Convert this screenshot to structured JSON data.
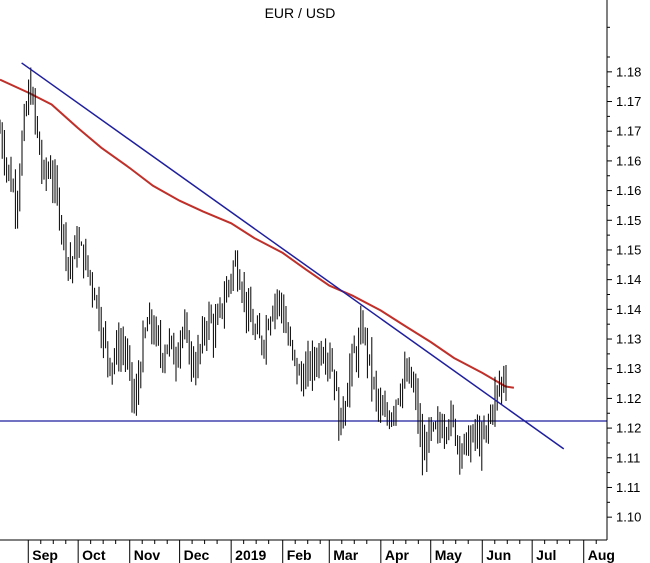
{
  "chart_data": {
    "type": "ohlc",
    "title": "EUR / USD",
    "x_tick_labels": [
      "Sep",
      "Oct",
      "Nov",
      "Dec",
      "2019",
      "Feb",
      "Mar",
      "Apr",
      "May",
      "Jun",
      "Jul",
      "Aug"
    ],
    "y_tick_labels": [
      "1.18",
      "1.17",
      "1.17",
      "1.16",
      "1.16",
      "1.15",
      "1.15",
      "1.14",
      "1.14",
      "1.13",
      "1.13",
      "1.12",
      "1.12",
      "1.11",
      "1.11",
      "1.10"
    ],
    "ylim": [
      1.1025,
      1.1825
    ],
    "grid": false,
    "trendline": {
      "start": {
        "date": "2018-08-28",
        "value": 1.1815
      },
      "end": {
        "date": "2019-07-20",
        "value": 1.1165
      },
      "color": "#1f1f9f"
    },
    "support_line": {
      "value": 1.1212,
      "color": "#1f1f9f"
    },
    "moving_average": {
      "color": "#c0302a",
      "points": [
        {
          "date": "2018-08-15",
          "value": 1.1787
        },
        {
          "date": "2018-09-01",
          "value": 1.1765
        },
        {
          "date": "2018-09-15",
          "value": 1.1745
        },
        {
          "date": "2018-10-01",
          "value": 1.1705
        },
        {
          "date": "2018-10-15",
          "value": 1.1672
        },
        {
          "date": "2018-11-01",
          "value": 1.1638
        },
        {
          "date": "2018-11-15",
          "value": 1.1608
        },
        {
          "date": "2018-12-01",
          "value": 1.1583
        },
        {
          "date": "2018-12-15",
          "value": 1.1565
        },
        {
          "date": "2019-01-01",
          "value": 1.1545
        },
        {
          "date": "2019-01-15",
          "value": 1.152
        },
        {
          "date": "2019-02-01",
          "value": 1.1495
        },
        {
          "date": "2019-02-15",
          "value": 1.1467
        },
        {
          "date": "2019-03-01",
          "value": 1.144
        },
        {
          "date": "2019-03-15",
          "value": 1.1423
        },
        {
          "date": "2019-04-01",
          "value": 1.1398
        },
        {
          "date": "2019-04-15",
          "value": 1.1373
        },
        {
          "date": "2019-05-01",
          "value": 1.1345
        },
        {
          "date": "2019-05-15",
          "value": 1.1318
        },
        {
          "date": "2019-06-01",
          "value": 1.1293
        },
        {
          "date": "2019-06-15",
          "value": 1.127
        },
        {
          "date": "2019-06-20",
          "value": 1.1268
        }
      ]
    },
    "price_path": [
      {
        "date": "2018-08-15",
        "value": 1.17
      },
      {
        "date": "2018-08-20",
        "value": 1.163
      },
      {
        "date": "2018-08-25",
        "value": 1.158
      },
      {
        "date": "2018-08-28",
        "value": 1.168
      },
      {
        "date": "2018-09-02",
        "value": 1.178
      },
      {
        "date": "2018-09-06",
        "value": 1.17
      },
      {
        "date": "2018-09-10",
        "value": 1.162
      },
      {
        "date": "2018-09-14",
        "value": 1.164
      },
      {
        "date": "2018-09-18",
        "value": 1.159
      },
      {
        "date": "2018-09-22",
        "value": 1.153
      },
      {
        "date": "2018-09-26",
        "value": 1.147
      },
      {
        "date": "2018-09-30",
        "value": 1.151
      },
      {
        "date": "2018-10-04",
        "value": 1.149
      },
      {
        "date": "2018-10-08",
        "value": 1.1455
      },
      {
        "date": "2018-10-12",
        "value": 1.142
      },
      {
        "date": "2018-10-16",
        "value": 1.135
      },
      {
        "date": "2018-10-20",
        "value": 1.131
      },
      {
        "date": "2018-10-24",
        "value": 1.133
      },
      {
        "date": "2018-10-28",
        "value": 1.134
      },
      {
        "date": "2018-11-01",
        "value": 1.129
      },
      {
        "date": "2018-11-04",
        "value": 1.123
      },
      {
        "date": "2018-11-08",
        "value": 1.1325
      },
      {
        "date": "2018-11-12",
        "value": 1.138
      },
      {
        "date": "2018-11-16",
        "value": 1.136
      },
      {
        "date": "2018-11-20",
        "value": 1.132
      },
      {
        "date": "2018-11-24",
        "value": 1.135
      },
      {
        "date": "2018-11-28",
        "value": 1.1315
      },
      {
        "date": "2018-12-02",
        "value": 1.137
      },
      {
        "date": "2018-12-06",
        "value": 1.1335
      },
      {
        "date": "2018-12-10",
        "value": 1.13
      },
      {
        "date": "2018-12-14",
        "value": 1.134
      },
      {
        "date": "2018-12-18",
        "value": 1.139
      },
      {
        "date": "2018-12-22",
        "value": 1.136
      },
      {
        "date": "2018-12-26",
        "value": 1.14
      },
      {
        "date": "2018-12-30",
        "value": 1.144
      },
      {
        "date": "2019-01-03",
        "value": 1.148
      },
      {
        "date": "2019-01-07",
        "value": 1.145
      },
      {
        "date": "2019-01-11",
        "value": 1.139
      },
      {
        "date": "2019-01-15",
        "value": 1.136
      },
      {
        "date": "2019-01-19",
        "value": 1.134
      },
      {
        "date": "2019-01-23",
        "value": 1.138
      },
      {
        "date": "2019-01-27",
        "value": 1.142
      },
      {
        "date": "2019-01-31",
        "value": 1.141
      },
      {
        "date": "2019-02-04",
        "value": 1.135
      },
      {
        "date": "2019-02-08",
        "value": 1.131
      },
      {
        "date": "2019-02-12",
        "value": 1.128
      },
      {
        "date": "2019-02-16",
        "value": 1.13
      },
      {
        "date": "2019-02-20",
        "value": 1.131
      },
      {
        "date": "2019-02-24",
        "value": 1.1335
      },
      {
        "date": "2019-02-28",
        "value": 1.133
      },
      {
        "date": "2019-03-04",
        "value": 1.129
      },
      {
        "date": "2019-03-07",
        "value": 1.12
      },
      {
        "date": "2019-03-10",
        "value": 1.124
      },
      {
        "date": "2019-03-14",
        "value": 1.131
      },
      {
        "date": "2019-03-18",
        "value": 1.133
      },
      {
        "date": "2019-03-21",
        "value": 1.137
      },
      {
        "date": "2019-03-25",
        "value": 1.131
      },
      {
        "date": "2019-03-29",
        "value": 1.125
      },
      {
        "date": "2019-04-02",
        "value": 1.1215
      },
      {
        "date": "2019-04-06",
        "value": 1.122
      },
      {
        "date": "2019-04-10",
        "value": 1.125
      },
      {
        "date": "2019-04-14",
        "value": 1.128
      },
      {
        "date": "2019-04-18",
        "value": 1.1285
      },
      {
        "date": "2019-04-22",
        "value": 1.125
      },
      {
        "date": "2019-04-26",
        "value": 1.115
      },
      {
        "date": "2019-04-30",
        "value": 1.119
      },
      {
        "date": "2019-05-04",
        "value": 1.119
      },
      {
        "date": "2019-05-08",
        "value": 1.1205
      },
      {
        "date": "2019-05-12",
        "value": 1.122
      },
      {
        "date": "2019-05-16",
        "value": 1.119
      },
      {
        "date": "2019-05-20",
        "value": 1.1165
      },
      {
        "date": "2019-05-24",
        "value": 1.1175
      },
      {
        "date": "2019-05-28",
        "value": 1.119
      },
      {
        "date": "2019-06-01",
        "value": 1.117
      },
      {
        "date": "2019-06-04",
        "value": 1.12
      },
      {
        "date": "2019-06-07",
        "value": 1.124
      },
      {
        "date": "2019-06-10",
        "value": 1.126
      },
      {
        "date": "2019-06-13",
        "value": 1.128
      },
      {
        "date": "2019-06-16",
        "value": 1.13
      }
    ]
  }
}
